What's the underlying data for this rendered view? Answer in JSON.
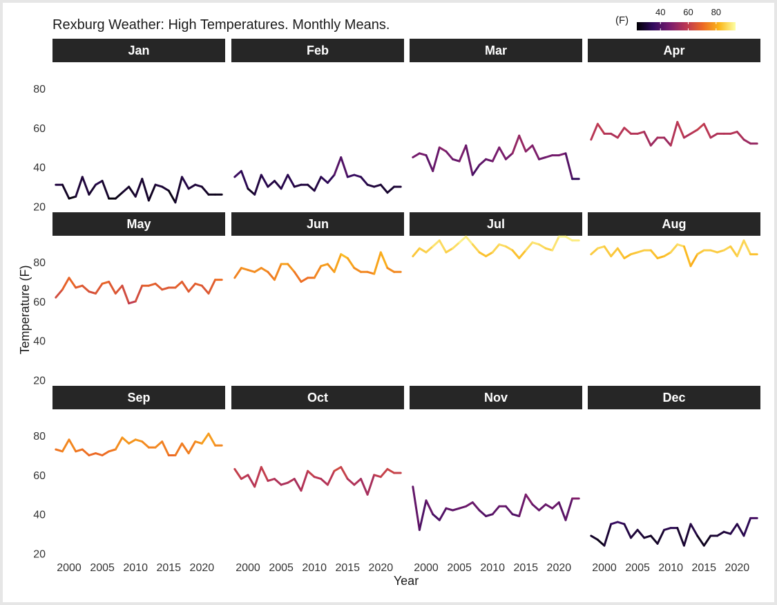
{
  "chart_data": {
    "type": "line",
    "title": "Rexburg Weather: High Temperatures. Monthly Means.",
    "xlabel": "Year",
    "ylabel": "Temperature (F)",
    "legend": {
      "title": "(F)",
      "placement": "top-right",
      "ticks": [
        "40",
        "60",
        "80"
      ],
      "range": [
        23,
        94
      ],
      "palette": [
        "#000004",
        "#320a5e",
        "#781c6d",
        "#bb3754",
        "#ec6824",
        "#fbb61a",
        "#fcffa4"
      ]
    },
    "xlim": [
      1997.5,
      2023.5
    ],
    "ylim": [
      17,
      92
    ],
    "x_ticks": [
      "2000",
      "2005",
      "2010",
      "2015",
      "2020"
    ],
    "y_ticks": [
      "20",
      "40",
      "60",
      "80"
    ],
    "x": [
      1998,
      1999,
      2000,
      2001,
      2002,
      2003,
      2004,
      2005,
      2006,
      2007,
      2008,
      2009,
      2010,
      2011,
      2012,
      2013,
      2014,
      2015,
      2016,
      2017,
      2018,
      2019,
      2020,
      2021,
      2022,
      2023
    ],
    "facets": [
      {
        "name": "Jan",
        "values": [
          31,
          31,
          24,
          25,
          35,
          26,
          31,
          33,
          24,
          24,
          27,
          30,
          25,
          34,
          23,
          31,
          30,
          28,
          22,
          35,
          29,
          31,
          30,
          26,
          26,
          26
        ]
      },
      {
        "name": "Feb",
        "values": [
          35,
          38,
          29,
          26,
          36,
          30,
          33,
          29,
          36,
          30,
          31,
          31,
          28,
          35,
          32,
          36,
          45,
          35,
          36,
          35,
          31,
          30,
          31,
          27,
          30,
          30
        ]
      },
      {
        "name": "Mar",
        "values": [
          45,
          47,
          46,
          38,
          50,
          48,
          44,
          43,
          51,
          36,
          41,
          44,
          43,
          50,
          44,
          47,
          56,
          48,
          51,
          44,
          45,
          46,
          46,
          47,
          34,
          34
        ]
      },
      {
        "name": "Apr",
        "values": [
          54,
          62,
          57,
          57,
          55,
          60,
          57,
          57,
          58,
          51,
          55,
          55,
          51,
          63,
          55,
          57,
          59,
          62,
          55,
          57,
          57,
          57,
          58,
          54,
          52,
          52
        ]
      },
      {
        "name": "May",
        "values": [
          62,
          66,
          72,
          67,
          68,
          65,
          64,
          69,
          70,
          64,
          68,
          59,
          60,
          68,
          68,
          69,
          66,
          67,
          67,
          70,
          65,
          69,
          68,
          64,
          71,
          71
        ]
      },
      {
        "name": "Jun",
        "values": [
          72,
          77,
          76,
          75,
          77,
          75,
          71,
          79,
          79,
          75,
          70,
          72,
          72,
          78,
          79,
          75,
          84,
          82,
          77,
          75,
          75,
          74,
          85,
          77,
          75,
          75
        ]
      },
      {
        "name": "Jul",
        "values": [
          83,
          87,
          85,
          88,
          91,
          85,
          87,
          90,
          93,
          89,
          85,
          83,
          85,
          89,
          88,
          86,
          82,
          86,
          90,
          89,
          87,
          86,
          93,
          93,
          91,
          91
        ]
      },
      {
        "name": "Aug",
        "values": [
          84,
          87,
          88,
          83,
          87,
          82,
          84,
          85,
          86,
          86,
          82,
          83,
          85,
          89,
          88,
          78,
          84,
          86,
          86,
          85,
          86,
          88,
          83,
          91,
          84,
          84
        ]
      },
      {
        "name": "Sep",
        "values": [
          73,
          72,
          78,
          72,
          73,
          70,
          71,
          70,
          72,
          73,
          79,
          76,
          78,
          77,
          74,
          74,
          77,
          70,
          70,
          76,
          71,
          77,
          76,
          81,
          75,
          75
        ]
      },
      {
        "name": "Oct",
        "values": [
          63,
          58,
          60,
          54,
          64,
          57,
          58,
          55,
          56,
          58,
          52,
          62,
          59,
          58,
          55,
          62,
          64,
          58,
          55,
          58,
          50,
          60,
          59,
          63,
          61,
          61
        ]
      },
      {
        "name": "Nov",
        "values": [
          54,
          32,
          47,
          40,
          37,
          43,
          42,
          43,
          44,
          46,
          42,
          39,
          40,
          44,
          44,
          40,
          39,
          50,
          45,
          42,
          45,
          43,
          46,
          37,
          48,
          48
        ]
      },
      {
        "name": "Dec",
        "values": [
          29,
          27,
          24,
          35,
          36,
          35,
          28,
          32,
          28,
          29,
          25,
          32,
          33,
          33,
          24,
          35,
          29,
          24,
          29,
          29,
          31,
          30,
          35,
          29,
          38,
          38
        ]
      }
    ]
  }
}
